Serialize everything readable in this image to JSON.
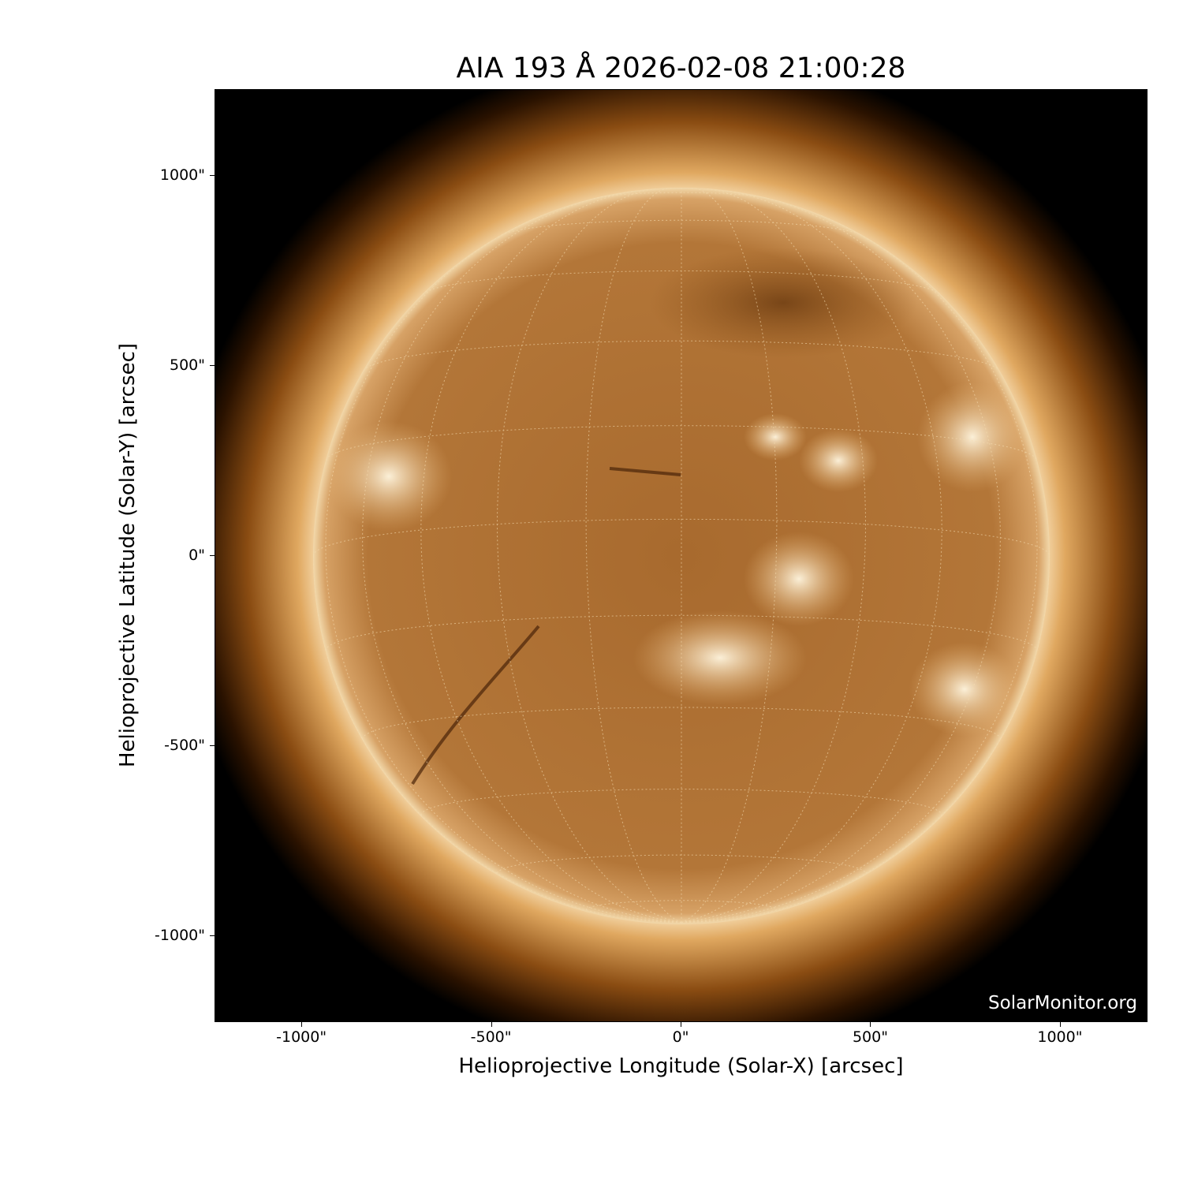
{
  "chart_data": {
    "type": "heatmap",
    "title": "AIA 193 Å 2026-02-08 21:00:28",
    "xlabel": "Helioprojective Longitude (Solar-X) [arcsec]",
    "ylabel": "Helioprojective Latitude (Solar-Y) [arcsec]",
    "xlim": [
      -1229,
      1231
    ],
    "ylim": [
      -1228,
      1226
    ],
    "x_ticks": [
      -1000,
      -500,
      0,
      500,
      1000
    ],
    "x_tick_labels": [
      "-1000\"",
      "-500\"",
      "0\"",
      "500\"",
      "1000\""
    ],
    "y_ticks": [
      1000,
      500,
      0,
      -500,
      -1000
    ],
    "y_tick_labels": [
      "1000\"",
      "500\"",
      "0\"",
      "-500\"",
      "-1000\""
    ],
    "solar_radius_arcsec": 970,
    "colormap": "sdoaia193",
    "grid": "heliographic lat/lon, dotted",
    "colors": {
      "background": "#000000",
      "corona": "#a8621e",
      "disk": "#b8793a",
      "bright": "#fff2d8"
    }
  },
  "watermark": "SolarMonitor.org"
}
